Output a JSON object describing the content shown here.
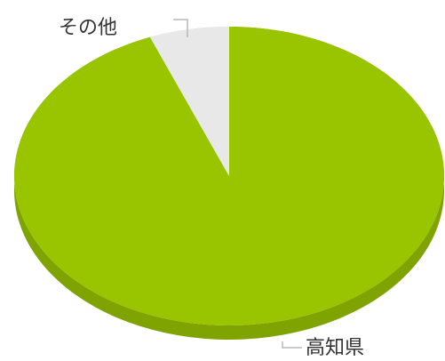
{
  "chart_data": {
    "type": "pie",
    "labels": [
      "高知県",
      "その他"
    ],
    "values": [
      94,
      6
    ],
    "colors": [
      "#99c400",
      "#e8e8e8"
    ],
    "side_colors": [
      "#7fa300",
      "#cfcfcf"
    ],
    "leader_color": "#b8b8b8",
    "label_color": "#333333"
  }
}
